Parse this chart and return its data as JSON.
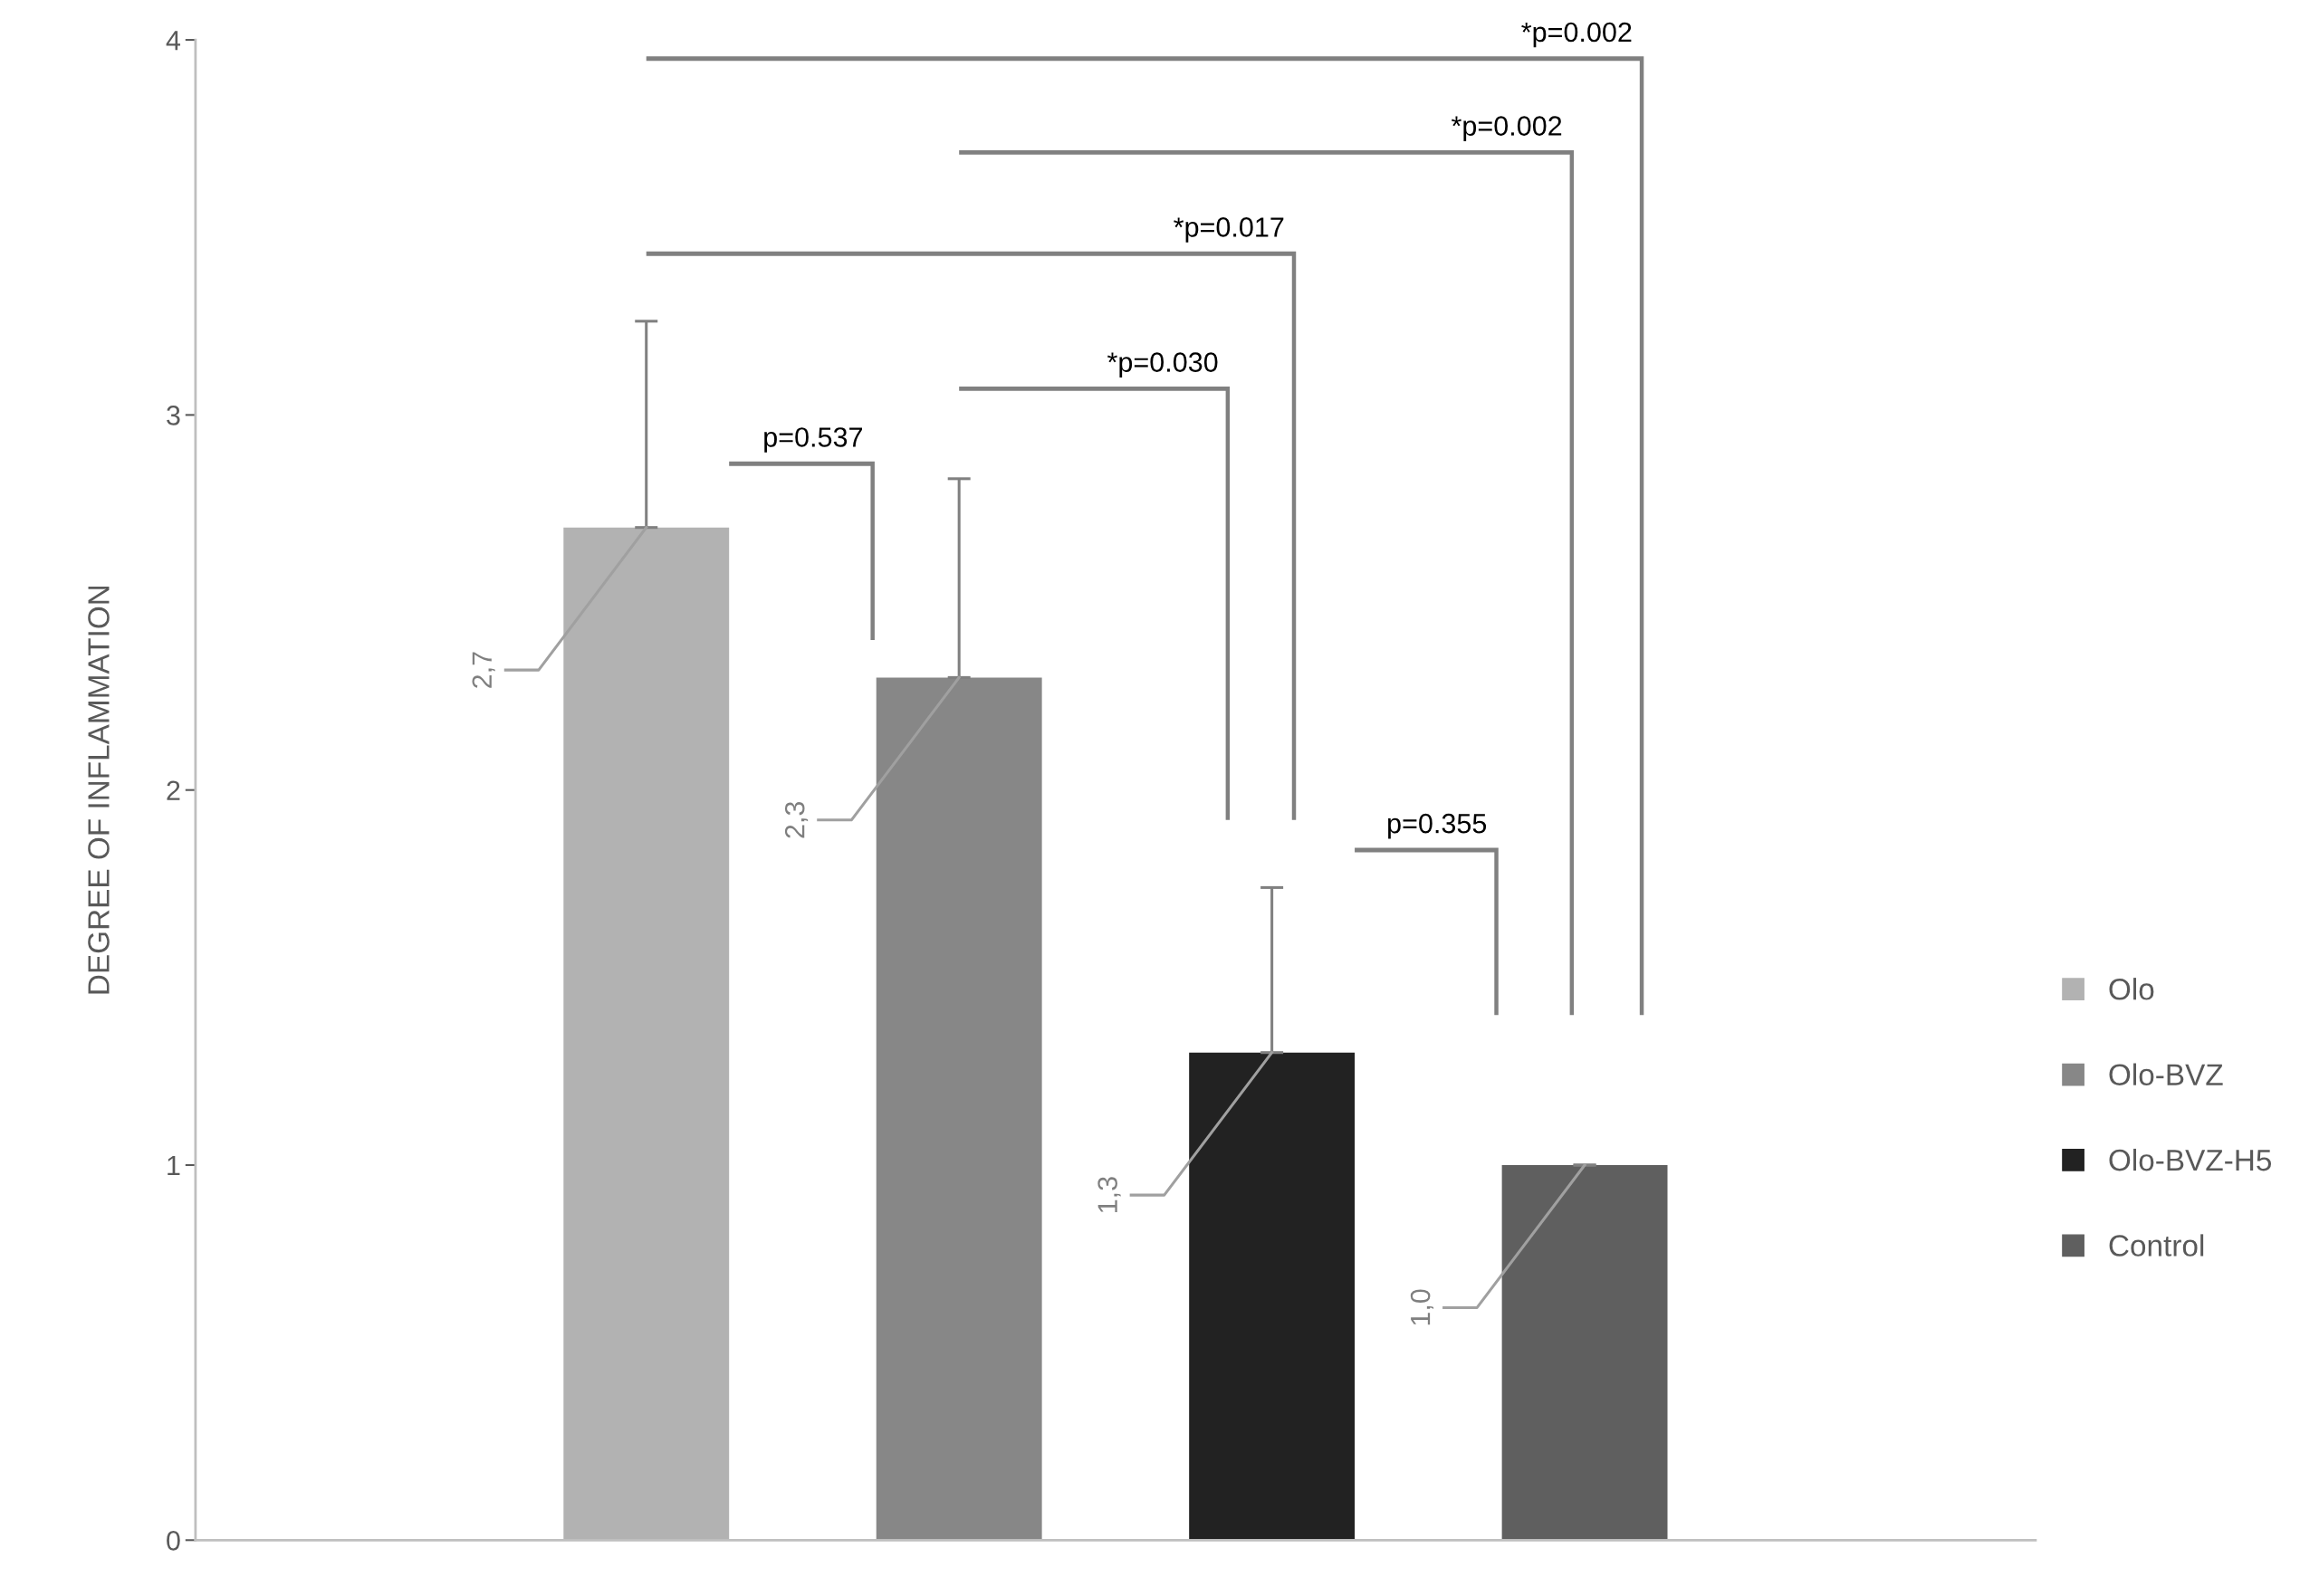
{
  "chart_data": {
    "type": "bar",
    "ylabel": "DEGREE OF INFLAMMATION",
    "categories": [
      null
    ],
    "series": [
      {
        "name": "Olo",
        "color": "#b2b2b2",
        "values": [
          2.7
        ],
        "errors": [
          [
            2.7,
            3.25
          ]
        ],
        "value_labels": [
          "2,7"
        ]
      },
      {
        "name": "Olo-BVZ",
        "color": "#878787",
        "values": [
          2.3
        ],
        "errors": [
          [
            2.3,
            2.83
          ]
        ],
        "value_labels": [
          "2,3"
        ]
      },
      {
        "name": "Olo-BVZ-H5",
        "color": "#222222",
        "values": [
          1.3
        ],
        "errors": [
          [
            1.3,
            1.74
          ]
        ],
        "value_labels": [
          "1,3"
        ]
      },
      {
        "name": "Control",
        "color": "#5f5f5f",
        "values": [
          1.0
        ],
        "errors": [
          0
        ],
        "value_labels": [
          "1,0"
        ]
      }
    ],
    "ylim": [
      0,
      4
    ],
    "yticks": [
      0,
      1,
      2,
      3,
      4
    ],
    "grid": false,
    "legend": "right",
    "annotations": [
      "*p=0.002",
      "*p=0.002",
      "*p=0.017",
      "*p=0.030",
      "p=0.537",
      "p=0.355"
    ]
  }
}
